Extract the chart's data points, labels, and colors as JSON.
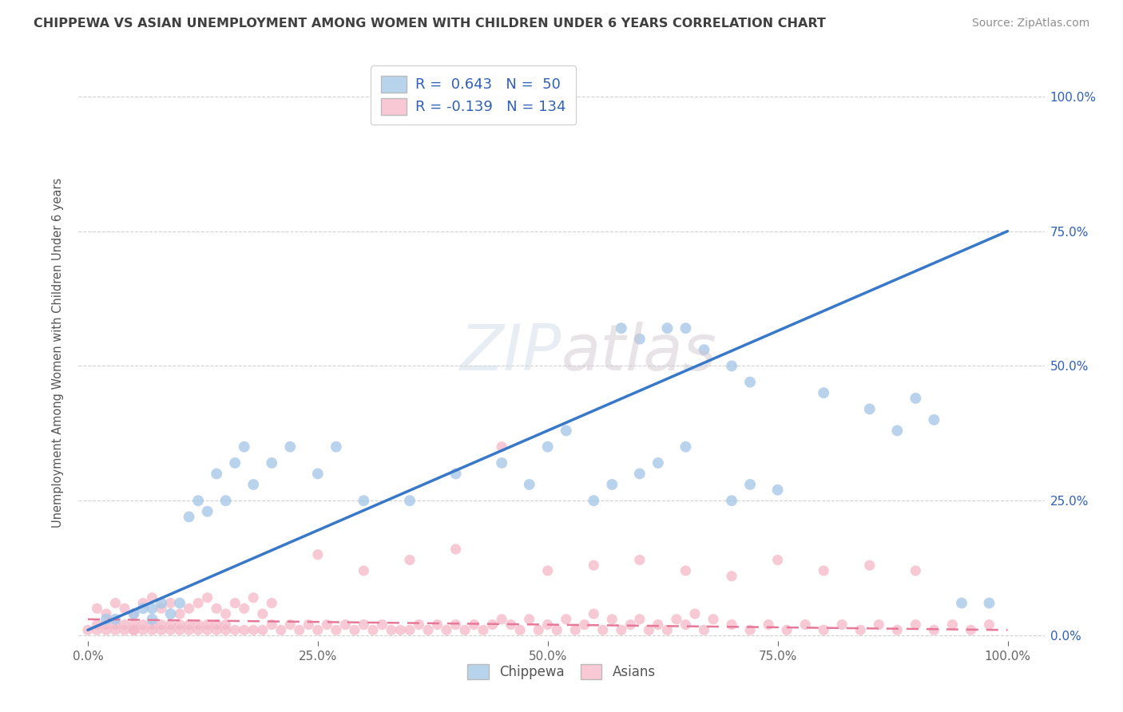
{
  "title": "CHIPPEWA VS ASIAN UNEMPLOYMENT AMONG WOMEN WITH CHILDREN UNDER 6 YEARS CORRELATION CHART",
  "source": "Source: ZipAtlas.com",
  "ylabel": "Unemployment Among Women with Children Under 6 years",
  "chippewa_R": 0.643,
  "chippewa_N": 50,
  "asian_R": -0.139,
  "asian_N": 134,
  "chippewa_color": "#a8c8e8",
  "asian_color": "#f4b8c8",
  "chippewa_line_color": "#3878c8",
  "asian_line_color": "#e87898",
  "legend_box_color_chippewa": "#b8d4ec",
  "legend_box_color_asian": "#f8c8d4",
  "legend_text_color": "#3060b8",
  "title_color": "#404040",
  "source_color": "#909090",
  "background_color": "#ffffff",
  "grid_color": "#cccccc",
  "chippewa_x": [
    0.02,
    0.03,
    0.05,
    0.06,
    0.07,
    0.07,
    0.08,
    0.09,
    0.1,
    0.11,
    0.12,
    0.13,
    0.14,
    0.15,
    0.16,
    0.17,
    0.18,
    0.2,
    0.22,
    0.25,
    0.27,
    0.3,
    0.35,
    0.4,
    0.45,
    0.48,
    0.5,
    0.52,
    0.55,
    0.57,
    0.58,
    0.6,
    0.62,
    0.65,
    0.7,
    0.72,
    0.75,
    0.8,
    0.85,
    0.88,
    0.9,
    0.92,
    0.95,
    0.98,
    0.6,
    0.63,
    0.65,
    0.67,
    0.7,
    0.72
  ],
  "chippewa_y": [
    0.03,
    0.03,
    0.04,
    0.05,
    0.05,
    0.03,
    0.06,
    0.04,
    0.06,
    0.22,
    0.25,
    0.23,
    0.3,
    0.25,
    0.32,
    0.35,
    0.28,
    0.32,
    0.35,
    0.3,
    0.35,
    0.25,
    0.25,
    0.3,
    0.32,
    0.28,
    0.35,
    0.38,
    0.25,
    0.28,
    0.57,
    0.3,
    0.32,
    0.35,
    0.25,
    0.28,
    0.27,
    0.45,
    0.42,
    0.38,
    0.44,
    0.4,
    0.06,
    0.06,
    0.55,
    0.57,
    0.57,
    0.53,
    0.5,
    0.47
  ],
  "asian_x": [
    0.0,
    0.01,
    0.01,
    0.02,
    0.02,
    0.03,
    0.03,
    0.04,
    0.04,
    0.05,
    0.05,
    0.05,
    0.06,
    0.06,
    0.07,
    0.07,
    0.08,
    0.08,
    0.09,
    0.09,
    0.1,
    0.1,
    0.11,
    0.11,
    0.12,
    0.12,
    0.13,
    0.13,
    0.14,
    0.14,
    0.15,
    0.15,
    0.16,
    0.17,
    0.18,
    0.19,
    0.2,
    0.21,
    0.22,
    0.23,
    0.24,
    0.25,
    0.26,
    0.27,
    0.28,
    0.29,
    0.3,
    0.31,
    0.32,
    0.33,
    0.34,
    0.35,
    0.36,
    0.37,
    0.38,
    0.39,
    0.4,
    0.41,
    0.42,
    0.43,
    0.44,
    0.45,
    0.46,
    0.47,
    0.48,
    0.49,
    0.5,
    0.51,
    0.52,
    0.53,
    0.54,
    0.55,
    0.56,
    0.57,
    0.58,
    0.59,
    0.6,
    0.61,
    0.62,
    0.63,
    0.64,
    0.65,
    0.66,
    0.67,
    0.68,
    0.7,
    0.72,
    0.74,
    0.76,
    0.78,
    0.8,
    0.82,
    0.84,
    0.86,
    0.88,
    0.9,
    0.92,
    0.94,
    0.96,
    0.98,
    0.01,
    0.02,
    0.03,
    0.04,
    0.05,
    0.06,
    0.07,
    0.08,
    0.09,
    0.1,
    0.11,
    0.12,
    0.13,
    0.14,
    0.15,
    0.16,
    0.17,
    0.18,
    0.19,
    0.2,
    0.25,
    0.3,
    0.35,
    0.4,
    0.45,
    0.5,
    0.55,
    0.6,
    0.65,
    0.7,
    0.75,
    0.8,
    0.85,
    0.9
  ],
  "asian_y": [
    0.01,
    0.01,
    0.02,
    0.02,
    0.01,
    0.01,
    0.02,
    0.01,
    0.02,
    0.01,
    0.02,
    0.01,
    0.02,
    0.01,
    0.02,
    0.01,
    0.02,
    0.01,
    0.02,
    0.01,
    0.02,
    0.01,
    0.02,
    0.01,
    0.02,
    0.01,
    0.02,
    0.01,
    0.02,
    0.01,
    0.02,
    0.01,
    0.01,
    0.01,
    0.01,
    0.01,
    0.02,
    0.01,
    0.02,
    0.01,
    0.02,
    0.01,
    0.02,
    0.01,
    0.02,
    0.01,
    0.02,
    0.01,
    0.02,
    0.01,
    0.01,
    0.01,
    0.02,
    0.01,
    0.02,
    0.01,
    0.02,
    0.01,
    0.02,
    0.01,
    0.02,
    0.03,
    0.02,
    0.01,
    0.03,
    0.01,
    0.02,
    0.01,
    0.03,
    0.01,
    0.02,
    0.04,
    0.01,
    0.03,
    0.01,
    0.02,
    0.03,
    0.01,
    0.02,
    0.01,
    0.03,
    0.02,
    0.04,
    0.01,
    0.03,
    0.02,
    0.01,
    0.02,
    0.01,
    0.02,
    0.01,
    0.02,
    0.01,
    0.02,
    0.01,
    0.02,
    0.01,
    0.02,
    0.01,
    0.02,
    0.05,
    0.04,
    0.06,
    0.05,
    0.04,
    0.06,
    0.07,
    0.05,
    0.06,
    0.04,
    0.05,
    0.06,
    0.07,
    0.05,
    0.04,
    0.06,
    0.05,
    0.07,
    0.04,
    0.06,
    0.15,
    0.12,
    0.14,
    0.16,
    0.35,
    0.12,
    0.13,
    0.14,
    0.12,
    0.11,
    0.14,
    0.12,
    0.13,
    0.12
  ],
  "chippewa_line_x0": 0.0,
  "chippewa_line_y0": 0.01,
  "chippewa_line_x1": 1.0,
  "chippewa_line_y1": 0.75,
  "asian_line_x0": 0.0,
  "asian_line_y0": 0.03,
  "asian_line_x1": 1.0,
  "asian_line_y1": 0.01,
  "xlim_min": -0.01,
  "xlim_max": 1.04,
  "ylim_min": -0.01,
  "ylim_max": 1.06
}
